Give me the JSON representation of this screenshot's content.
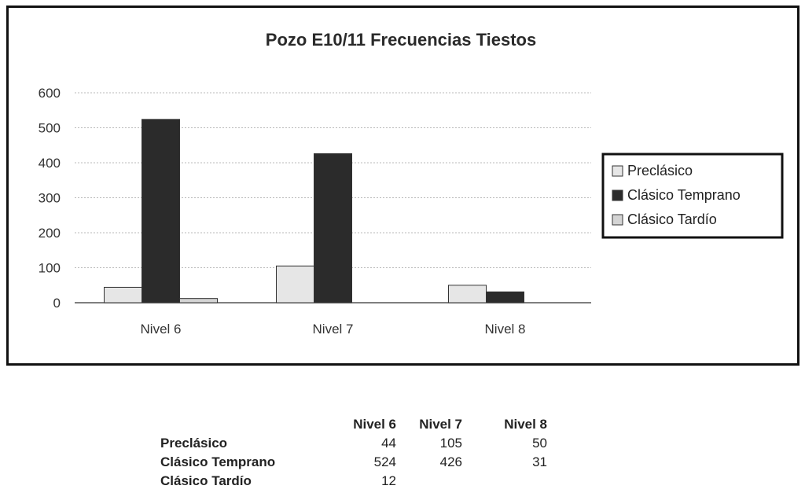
{
  "chart_data": {
    "type": "bar",
    "title": "Pozo E10/11 Frecuencias Tiestos",
    "categories": [
      "Nivel 6",
      "Nivel 7",
      "Nivel 8"
    ],
    "series": [
      {
        "name": "Preclásico",
        "values": [
          44,
          105,
          50
        ],
        "color": "#e6e6e6"
      },
      {
        "name": "Clásico Temprano",
        "values": [
          524,
          426,
          31
        ],
        "color": "#2b2b2b"
      },
      {
        "name": "Clásico Tardío",
        "values": [
          12,
          null,
          null
        ],
        "color": "#d4d4d4"
      }
    ],
    "ylim": [
      0,
      600
    ],
    "yticks": [
      "0",
      "100",
      "200",
      "300",
      "400",
      "500",
      "600"
    ],
    "grid": true,
    "legend_position": "right"
  },
  "table": {
    "headers": [
      "Nivel 6",
      "Nivel 7",
      "Nivel 8"
    ],
    "rows": [
      {
        "label": "Preclásico",
        "values": [
          "44",
          "105",
          "50"
        ]
      },
      {
        "label": "Clásico Temprano",
        "values": [
          "524",
          "426",
          "31"
        ]
      },
      {
        "label": "Clásico Tardío",
        "values": [
          "12",
          "",
          ""
        ]
      }
    ]
  }
}
